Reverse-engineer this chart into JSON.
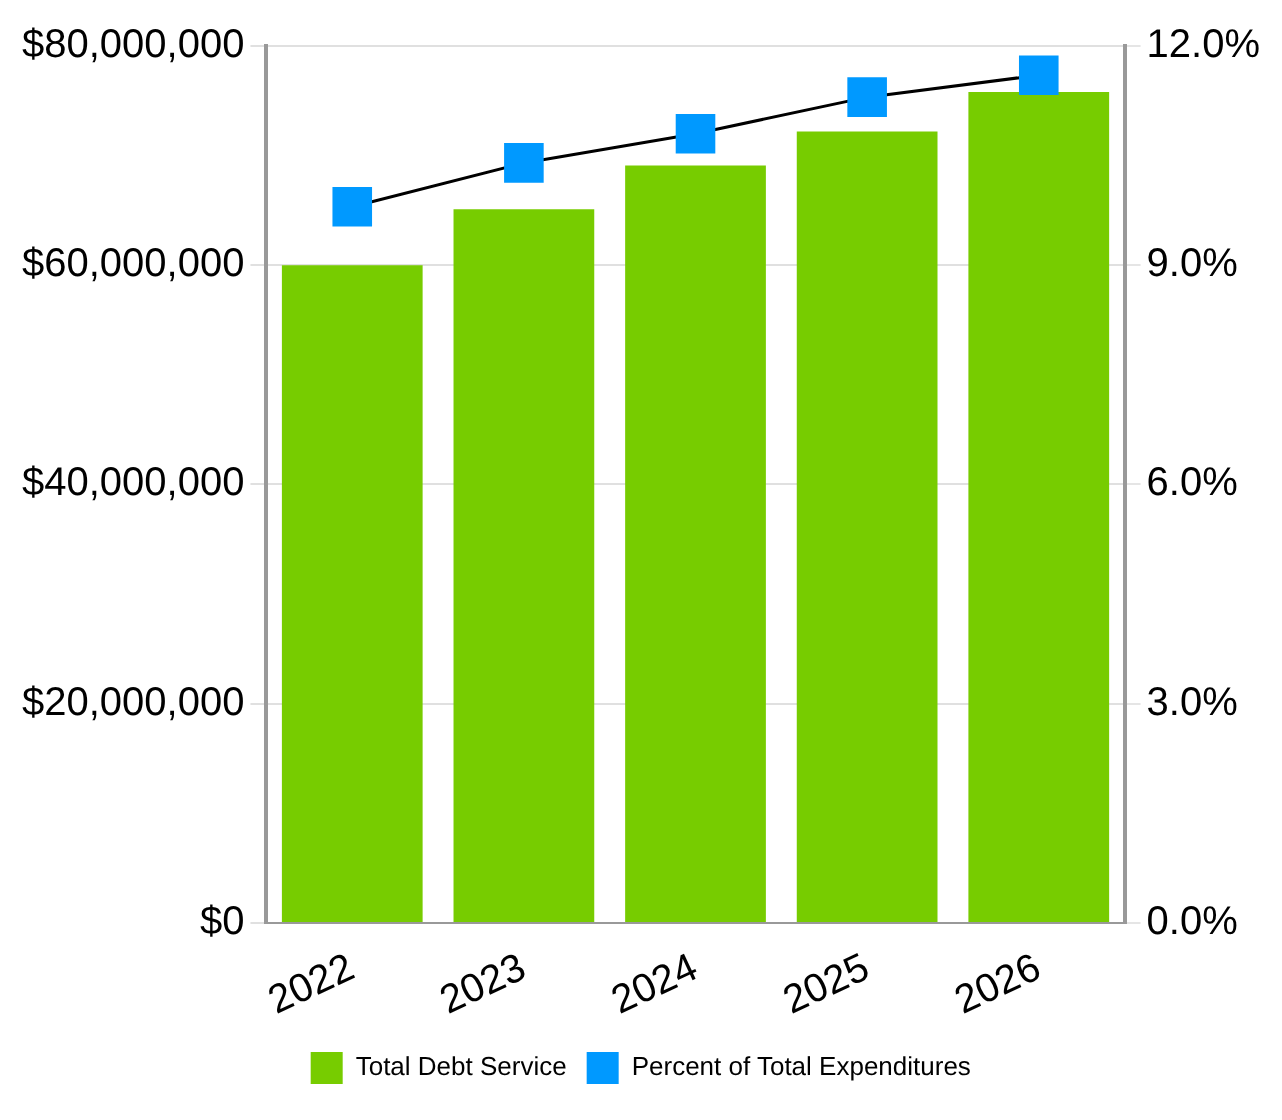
{
  "chart_data": {
    "type": "bar",
    "categories": [
      "2022",
      "2023",
      "2024",
      "2025",
      "2026"
    ],
    "series": [
      {
        "name": "Total Debt Service",
        "color": "#77cc00",
        "values": [
          60000000,
          65100000,
          69100000,
          72200000,
          75800000
        ]
      },
      {
        "name": "Percent of Total Expenditures",
        "type": "line",
        "axis": "y2",
        "color": "#0099ff",
        "values": [
          9.8,
          10.4,
          10.8,
          11.3,
          11.6
        ]
      }
    ],
    "ylim": [
      0,
      80000000
    ],
    "yticks": [
      {
        "value": 0,
        "label": "$0"
      },
      {
        "value": 20000000,
        "label": "$20,000,000"
      },
      {
        "value": 40000000,
        "label": "$40,000,000"
      },
      {
        "value": 60000000,
        "label": "$60,000,000"
      },
      {
        "value": 80000000,
        "label": "$80,000,000"
      }
    ],
    "y2lim": [
      0,
      12
    ],
    "y2ticks": [
      {
        "value": 0,
        "label": "0.0%"
      },
      {
        "value": 3,
        "label": "3.0%"
      },
      {
        "value": 6,
        "label": "6.0%"
      },
      {
        "value": 9,
        "label": "9.0%"
      },
      {
        "value": 12,
        "label": "12.0%"
      }
    ],
    "grid": "y",
    "legend": "bottom",
    "marker": "square"
  }
}
